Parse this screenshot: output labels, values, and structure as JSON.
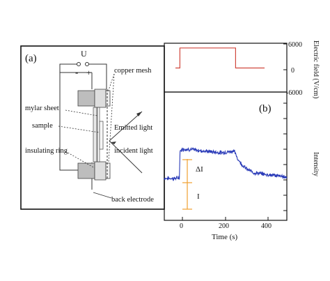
{
  "panel_a": {
    "tag": "(a)",
    "voltage_label": "U",
    "minus_sign": "-",
    "plus_sign": "+",
    "labels": {
      "copper_mesh": "copper mesh",
      "mylar_sheet": "mylar sheet",
      "sample": "sample",
      "emitted_light": "Emitted light",
      "incident_light": "incident light",
      "insulating_ring": "insulating ring",
      "back_electrode": "back electrode"
    }
  },
  "panel_b": {
    "tag": "(b)",
    "top_axis_ticks": [
      "6000",
      "0",
      "-6000"
    ],
    "top_axis_label": "Electric field (V/cm)",
    "bottom_axis_label": "Intensity",
    "x_ticks": [
      "0",
      "200",
      "400"
    ],
    "x_label": "Time (s)",
    "delta_label": "ΔI",
    "i_label": "I"
  },
  "colors": {
    "field_line": "#d0453c",
    "intensity_line": "#2a3bb8",
    "marker": "#f0a030"
  },
  "chart_data": [
    {
      "type": "line",
      "series": [
        {
          "x": [
            0,
            20,
            20,
            270,
            270,
            400
          ],
          "y": [
            0,
            0,
            5000,
            5000,
            0,
            0
          ]
        }
      ],
      "xlim": [
        -50,
        500
      ],
      "ylim": [
        -6000,
        6000
      ],
      "ylabel": "Electric field (V/cm)"
    },
    {
      "type": "line",
      "series": [
        {
          "x": [
            -50,
            0,
            18,
            20,
            30,
            60,
            100,
            150,
            200,
            250,
            262,
            280,
            300,
            320,
            350,
            400,
            450,
            500
          ],
          "y": [
            0.12,
            0.12,
            0.13,
            0.58,
            0.62,
            0.62,
            0.6,
            0.58,
            0.56,
            0.58,
            0.6,
            0.45,
            0.35,
            0.28,
            0.22,
            0.19,
            0.17,
            0.14
          ]
        }
      ],
      "xlim": [
        -50,
        500
      ],
      "ylim": [
        -0.6,
        1.6
      ],
      "xlabel": "Time (s)",
      "ylabel": "Intensity",
      "x_ticks": [
        0,
        200,
        400
      ]
    }
  ]
}
